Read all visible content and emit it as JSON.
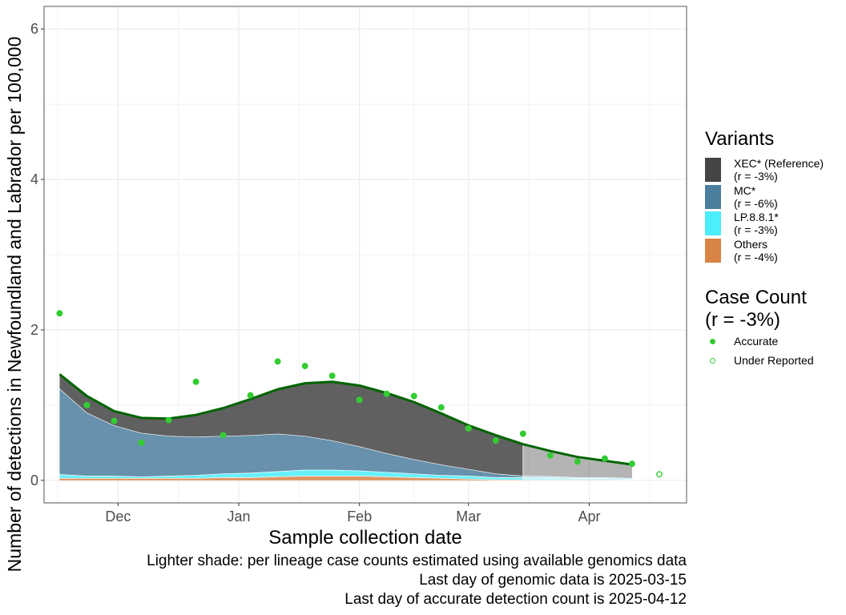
{
  "chart_data": {
    "type": "area",
    "xlabel": "Sample collection date",
    "ylabel": "Number of detections in Newfoundland and Labrador per 100,000",
    "xlim": [
      "2024-11-12",
      "2025-04-26"
    ],
    "ylim": [
      -0.3,
      6.3
    ],
    "x_ticks": [
      "2024-12-01",
      "2025-01-01",
      "2025-02-01",
      "2025-03-01",
      "2025-04-01"
    ],
    "x_tick_labels": [
      "Dec",
      "Jan",
      "Feb",
      "Mar",
      "Apr"
    ],
    "y_ticks": [
      0,
      2,
      4,
      6
    ],
    "y_tick_labels": [
      "0",
      "2",
      "4",
      "6"
    ],
    "grid": true,
    "legend_position": "right",
    "x": [
      "2024-11-16",
      "2024-11-23",
      "2024-11-30",
      "2024-12-07",
      "2024-12-14",
      "2024-12-21",
      "2024-12-28",
      "2025-01-04",
      "2025-01-11",
      "2025-01-18",
      "2025-01-25",
      "2025-02-01",
      "2025-02-08",
      "2025-02-15",
      "2025-02-22",
      "2025-03-01",
      "2025-03-08",
      "2025-03-15",
      "2025-03-22",
      "2025-03-29",
      "2025-04-05",
      "2025-04-12"
    ],
    "genomic_end": "2025-03-15",
    "total_line": [
      1.41,
      1.12,
      0.92,
      0.83,
      0.82,
      0.87,
      0.96,
      1.08,
      1.21,
      1.29,
      1.31,
      1.26,
      1.16,
      1.04,
      0.89,
      0.73,
      0.6,
      0.48,
      0.39,
      0.31,
      0.26,
      0.21
    ],
    "series": [
      {
        "name": "Others",
        "legend_note": "(r = -4%)",
        "color": "#D98447",
        "values": [
          0.03,
          0.03,
          0.03,
          0.03,
          0.03,
          0.03,
          0.04,
          0.04,
          0.05,
          0.06,
          0.06,
          0.06,
          0.05,
          0.04,
          0.03,
          0.02,
          0.01,
          0.01,
          0.01,
          0.01,
          0.01,
          0.005
        ]
      },
      {
        "name": "LP.8.8.1*",
        "legend_note": "(r = -3%)",
        "color": "#4CEDFC",
        "values": [
          0.05,
          0.03,
          0.03,
          0.02,
          0.03,
          0.04,
          0.05,
          0.06,
          0.07,
          0.08,
          0.08,
          0.07,
          0.06,
          0.05,
          0.04,
          0.04,
          0.03,
          0.03,
          0.03,
          0.02,
          0.02,
          0.015
        ]
      },
      {
        "name": "MC*",
        "legend_note": "(r = -6%)",
        "color": "#4C7E9E",
        "values": [
          1.14,
          0.84,
          0.67,
          0.58,
          0.53,
          0.51,
          0.5,
          0.5,
          0.5,
          0.45,
          0.39,
          0.32,
          0.25,
          0.19,
          0.14,
          0.09,
          0.05,
          0.02,
          0.015,
          0.01,
          0.01,
          0.01
        ]
      },
      {
        "name": "XEC* (Reference)",
        "legend_note": "(r = -3%)",
        "color": "#444444",
        "values": [
          0.19,
          0.22,
          0.19,
          0.2,
          0.23,
          0.29,
          0.37,
          0.48,
          0.59,
          0.7,
          0.78,
          0.81,
          0.8,
          0.76,
          0.68,
          0.58,
          0.51,
          0.42,
          0.335,
          0.27,
          0.22,
          0.18
        ]
      }
    ],
    "case_count": {
      "title": "Case Count",
      "note": "(r = -3%)",
      "color": "#33CC33",
      "accurate_label": "Accurate",
      "under_label": "Under Reported",
      "accurate": {
        "x": [
          "2024-11-16",
          "2024-11-23",
          "2024-11-30",
          "2024-12-07",
          "2024-12-14",
          "2024-12-21",
          "2024-12-28",
          "2025-01-04",
          "2025-01-11",
          "2025-01-18",
          "2025-01-25",
          "2025-02-01",
          "2025-02-08",
          "2025-02-15",
          "2025-02-22",
          "2025-03-01",
          "2025-03-08",
          "2025-03-15",
          "2025-03-22",
          "2025-03-29",
          "2025-04-05",
          "2025-04-12"
        ],
        "y": [
          2.22,
          1.0,
          0.79,
          0.5,
          0.8,
          1.31,
          0.6,
          1.13,
          1.58,
          1.52,
          1.39,
          1.07,
          1.15,
          1.12,
          0.97,
          0.69,
          0.53,
          0.62,
          0.33,
          0.25,
          0.29,
          0.22
        ]
      },
      "under_reported": {
        "x": [
          "2025-04-19"
        ],
        "y": [
          0.08
        ]
      }
    }
  },
  "legend": {
    "variants_title": "Variants"
  },
  "captions": [
    "Lighter shade: per lineage case counts estimated using available genomics data",
    "Last day of genomic data is 2025-03-15",
    "Last day of accurate detection count is 2025-04-12"
  ]
}
